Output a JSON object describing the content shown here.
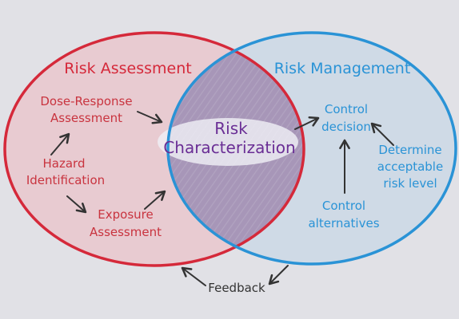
{
  "left_circle": {
    "title": "Risk Assessment",
    "stroke_color": "#d5293a",
    "fill_color": "#e9c9cf",
    "items": {
      "dose_response": [
        "Dose-Response",
        "Assessment"
      ],
      "hazard": [
        "Hazard",
        "Identification"
      ],
      "exposure": [
        "Exposure",
        "Assessment"
      ]
    }
  },
  "right_circle": {
    "title": "Risk Management",
    "stroke_color": "#2a93d6",
    "fill_color": "#cfdbe6",
    "items": {
      "control_decision": [
        "Control",
        "decision"
      ],
      "control_alternatives": [
        "Control",
        "alternatives"
      ],
      "acceptable_risk": [
        "Determine",
        "acceptable",
        "risk level"
      ]
    }
  },
  "overlap": {
    "label": [
      "Risk",
      "Characterization"
    ],
    "fill_color": "#a495b6",
    "text_color": "#6a2e95"
  },
  "feedback": {
    "label": "Feedback"
  }
}
